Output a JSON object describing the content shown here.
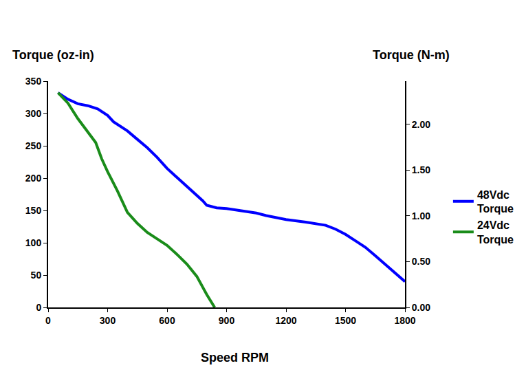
{
  "chart_data": {
    "type": "line",
    "x_label": "Speed RPM",
    "y_label": "Torque (oz-in)",
    "y2_label": "Torque (N-m)",
    "xlim": [
      0,
      1800
    ],
    "xticks": [
      0,
      300,
      600,
      900,
      1200,
      1500,
      1800
    ],
    "ylim": [
      0,
      350
    ],
    "yticks": [
      0,
      50,
      100,
      150,
      200,
      250,
      300,
      350
    ],
    "y2lim": [
      0,
      2.4716
    ],
    "y2ticks": [
      {
        "value": 0,
        "label": "0.00"
      },
      {
        "value": 0.5,
        "label": "0.50"
      },
      {
        "value": 1,
        "label": "1.00"
      },
      {
        "value": 1.5,
        "label": "1.50"
      },
      {
        "value": 2,
        "label": "2.00"
      }
    ],
    "grid": false,
    "legend": "right",
    "series": [
      {
        "name": "48Vdc Torque",
        "color": "#0000ff",
        "line_style": "solid",
        "x": [
          50,
          100,
          150,
          200,
          250,
          300,
          330,
          400,
          450,
          500,
          550,
          600,
          650,
          700,
          750,
          780,
          800,
          850,
          900,
          950,
          1000,
          1050,
          1100,
          1200,
          1300,
          1400,
          1450,
          1500,
          1550,
          1600,
          1650,
          1700,
          1750,
          1800
        ],
        "values": [
          332,
          322,
          315,
          312,
          307,
          297,
          287,
          273,
          260,
          247,
          232,
          215,
          201,
          187,
          174,
          165,
          158,
          154,
          153,
          151,
          149,
          146,
          142,
          136,
          132,
          127,
          121,
          113,
          103,
          93,
          80,
          67,
          54,
          40
        ]
      },
      {
        "name": "24Vdc Torque",
        "color": "#1a8c1a",
        "line_style": "solid",
        "x": [
          50,
          100,
          150,
          200,
          240,
          270,
          300,
          350,
          400,
          450,
          500,
          550,
          600,
          650,
          700,
          750,
          800,
          840
        ],
        "values": [
          332,
          316,
          292,
          272,
          255,
          230,
          210,
          180,
          147,
          130,
          116,
          106,
          96,
          82,
          67,
          48,
          20,
          0
        ]
      }
    ]
  }
}
